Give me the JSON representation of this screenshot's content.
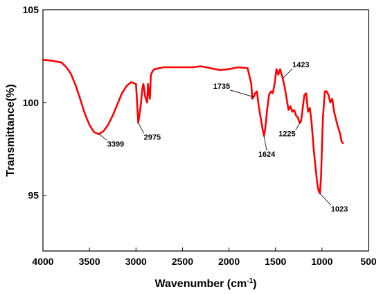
{
  "chart_data": {
    "type": "line",
    "title": "",
    "xlabel": "Wavenumber (cm",
    "xlabel_sup": "-1",
    "xlabel_close": ")",
    "ylabel": "Transmittance(%)",
    "xlim": [
      4000,
      500
    ],
    "ylim": [
      92,
      105
    ],
    "x_ticks": [
      4000,
      3500,
      3000,
      2500,
      2000,
      1500,
      1000,
      500
    ],
    "y_ticks": [
      95,
      100,
      105
    ],
    "grid": false,
    "series": [
      {
        "color": "#ff0000",
        "x": [
          4000,
          3900,
          3800,
          3750,
          3700,
          3650,
          3600,
          3550,
          3500,
          3450,
          3399,
          3350,
          3300,
          3250,
          3200,
          3150,
          3100,
          3050,
          3000,
          2990,
          2975,
          2950,
          2930,
          2920,
          2900,
          2880,
          2870,
          2860,
          2850,
          2840,
          2820,
          2800,
          2700,
          2600,
          2500,
          2400,
          2300,
          2200,
          2100,
          2000,
          1900,
          1800,
          1760,
          1750,
          1735,
          1720,
          1700,
          1680,
          1660,
          1640,
          1624,
          1610,
          1590,
          1570,
          1550,
          1530,
          1510,
          1490,
          1470,
          1450,
          1423,
          1400,
          1380,
          1360,
          1340,
          1320,
          1300,
          1280,
          1260,
          1240,
          1225,
          1210,
          1190,
          1170,
          1150,
          1130,
          1110,
          1090,
          1070,
          1050,
          1040,
          1023,
          1010,
          1000,
          990,
          970,
          950,
          930,
          910,
          890,
          870,
          850,
          830,
          810,
          790,
          775
        ],
        "y": [
          102.3,
          102.2,
          102.1,
          101.9,
          101.6,
          101.0,
          100.2,
          99.4,
          98.8,
          98.4,
          98.3,
          98.45,
          98.8,
          99.3,
          99.9,
          100.5,
          100.9,
          101.1,
          101.0,
          100.2,
          98.9,
          99.8,
          100.8,
          101.0,
          100.3,
          100.0,
          101.0,
          100.5,
          100.2,
          101.5,
          101.7,
          101.8,
          101.9,
          101.9,
          101.9,
          101.9,
          101.95,
          101.85,
          101.75,
          101.8,
          101.9,
          101.85,
          101.0,
          100.2,
          100.3,
          100.5,
          100.6,
          99.8,
          99.2,
          98.6,
          98.2,
          98.6,
          99.6,
          100.4,
          100.6,
          100.5,
          101.0,
          101.8,
          101.5,
          101.8,
          101.3,
          100.8,
          100.2,
          99.6,
          99.8,
          99.5,
          99.6,
          99.3,
          99.2,
          98.9,
          99.0,
          99.6,
          100.4,
          100.5,
          99.5,
          99.7,
          98.8,
          97.5,
          96.5,
          95.6,
          95.3,
          95.1,
          96.0,
          97.8,
          99.2,
          100.6,
          100.6,
          100.4,
          100.0,
          100.2,
          99.5,
          99.1,
          98.7,
          98.4,
          97.9,
          97.8
        ]
      }
    ],
    "annotations": [
      {
        "label": "3399",
        "x": 3399,
        "y": 98.3
      },
      {
        "label": "2975",
        "x": 2975,
        "y": 98.9
      },
      {
        "label": "1735",
        "x": 1735,
        "y": 100.3
      },
      {
        "label": "1624",
        "x": 1624,
        "y": 98.2
      },
      {
        "label": "1423",
        "x": 1423,
        "y": 101.3
      },
      {
        "label": "1225",
        "x": 1225,
        "y": 99.0
      },
      {
        "label": "1023",
        "x": 1023,
        "y": 95.1
      }
    ]
  }
}
